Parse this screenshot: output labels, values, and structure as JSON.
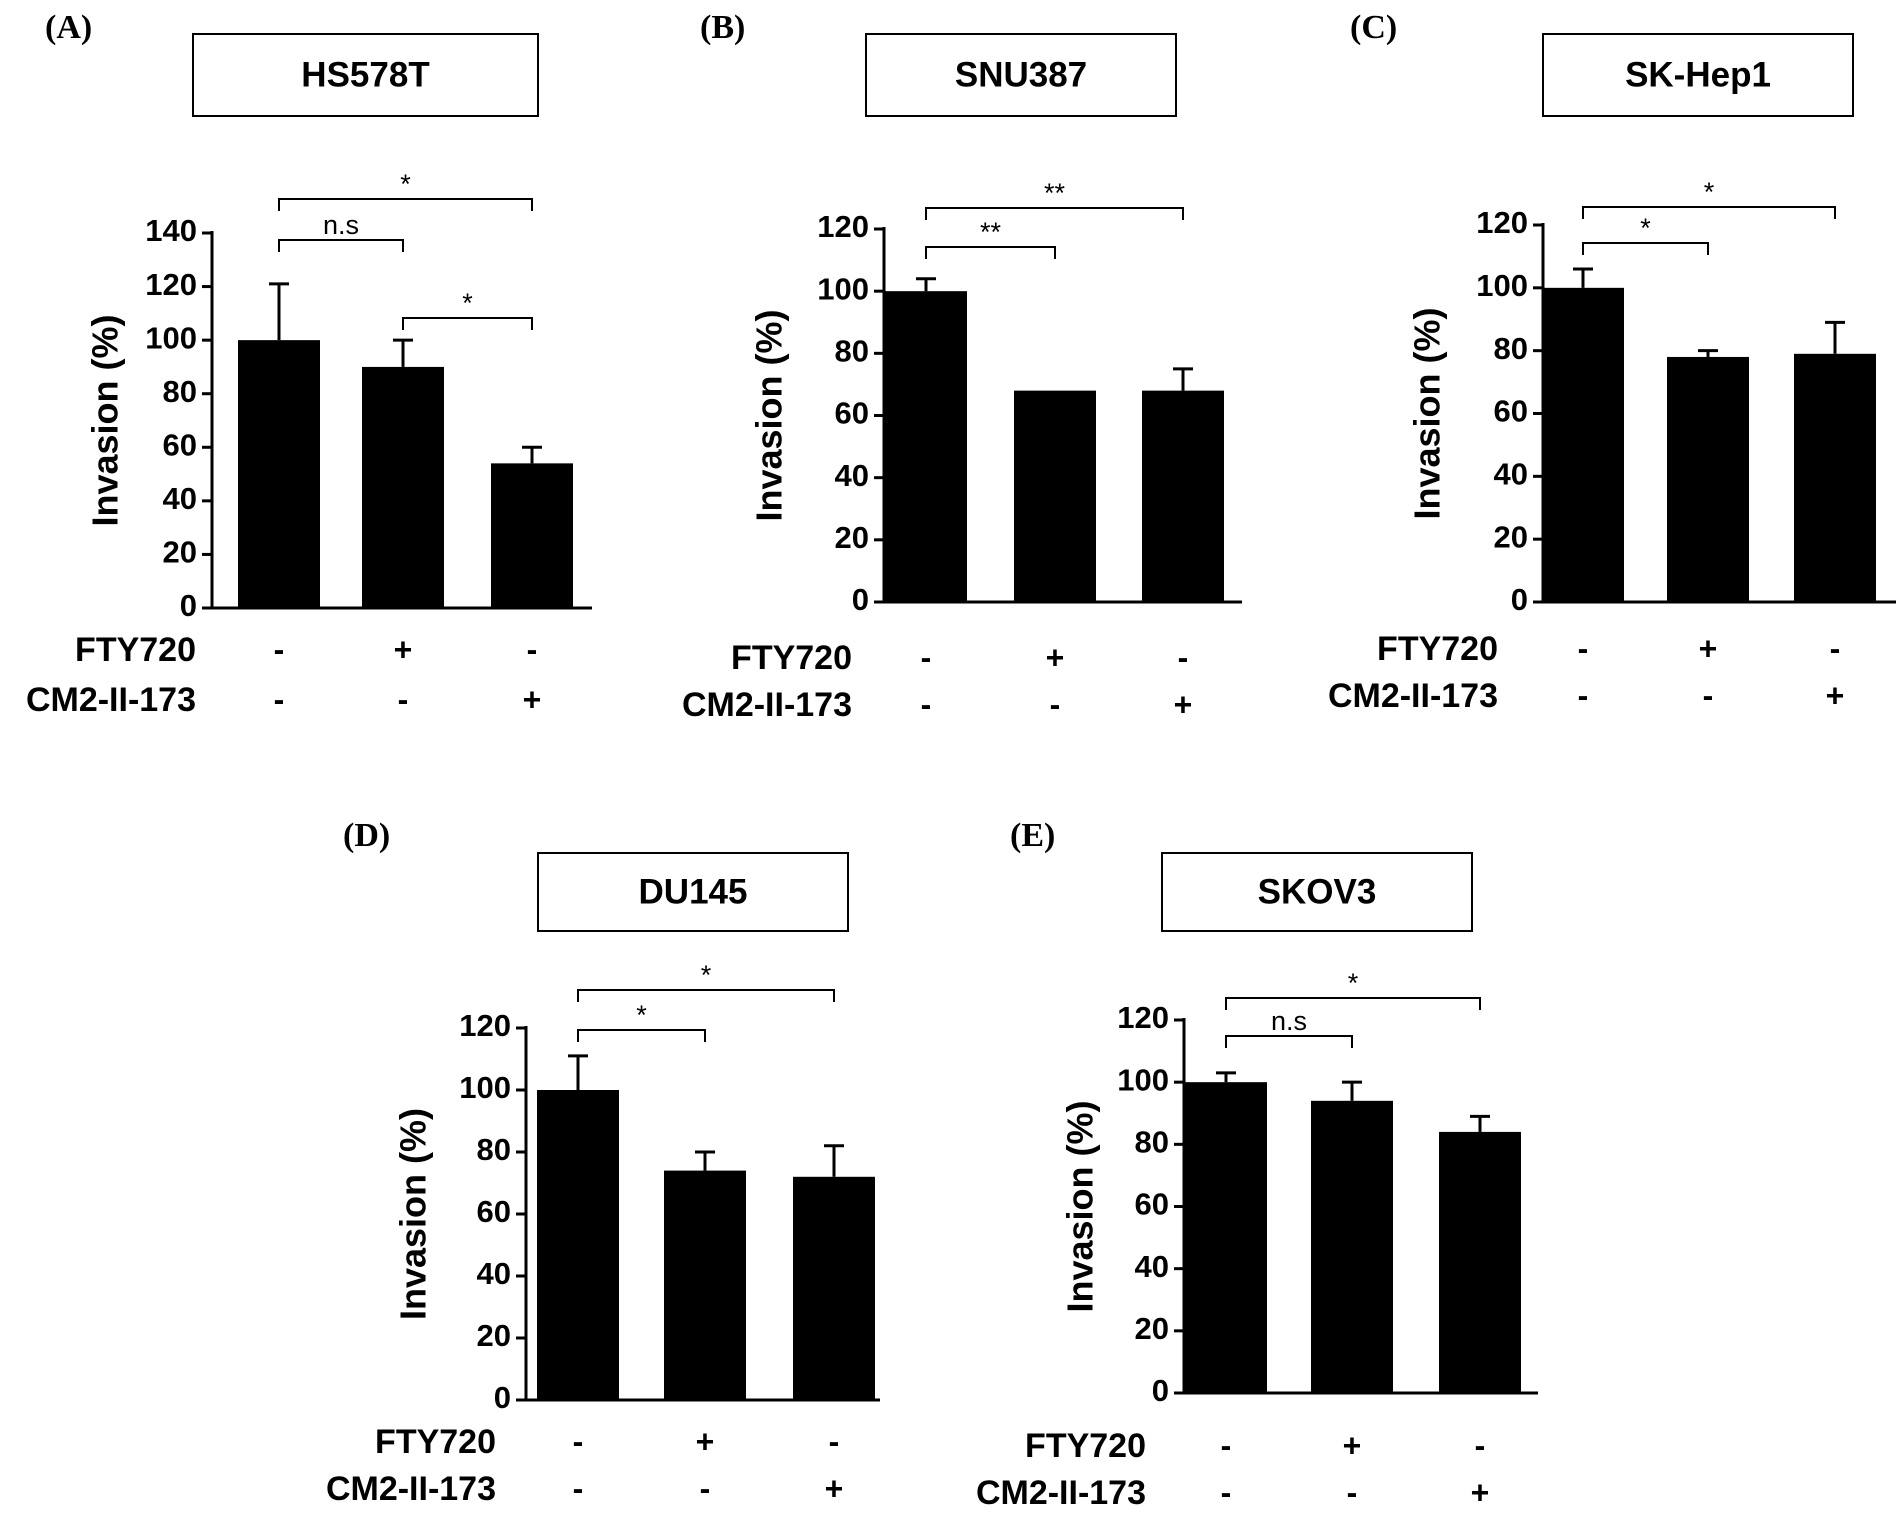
{
  "treatment_labels": [
    "FTY720",
    "CM2-II-173"
  ],
  "chart_data": [
    {
      "type": "bar",
      "panel": "(A)",
      "title": "HS578T",
      "ylabel": "Invasion (%)",
      "ylim": [
        0,
        140
      ],
      "yticks": [
        0,
        20,
        40,
        60,
        80,
        100,
        120,
        140
      ],
      "categories": [
        "FTY720 - / CM2-II-173 -",
        "FTY720 + / CM2-II-173 -",
        "FTY720 - / CM2-II-173 +"
      ],
      "values": [
        100,
        90,
        54
      ],
      "errors": [
        21,
        10,
        6
      ],
      "treatments": [
        [
          "-",
          "+",
          "-"
        ],
        [
          "-",
          "-",
          "+"
        ]
      ],
      "significance": [
        {
          "from": 0,
          "to": 1,
          "label": "n.s",
          "level": 0
        },
        {
          "from": 1,
          "to": 2,
          "label": "*",
          "level": 0
        },
        {
          "from": 0,
          "to": 2,
          "label": "*",
          "level": 1
        }
      ]
    },
    {
      "type": "bar",
      "panel": "(B)",
      "title": "SNU387",
      "ylabel": "Invasion (%)",
      "ylim": [
        0,
        120
      ],
      "yticks": [
        0,
        20,
        40,
        60,
        80,
        100,
        120
      ],
      "categories": [
        "FTY720 - / CM2-II-173 -",
        "FTY720 + / CM2-II-173 -",
        "FTY720 - / CM2-II-173 +"
      ],
      "values": [
        100,
        68,
        68
      ],
      "errors": [
        4,
        0,
        7
      ],
      "treatments": [
        [
          "-",
          "+",
          "-"
        ],
        [
          "-",
          "-",
          "+"
        ]
      ],
      "significance": [
        {
          "from": 0,
          "to": 1,
          "label": "**",
          "level": 0
        },
        {
          "from": 0,
          "to": 2,
          "label": "**",
          "level": 1
        }
      ]
    },
    {
      "type": "bar",
      "panel": "(C)",
      "title": "SK-Hep1",
      "ylabel": "Invasion (%)",
      "ylim": [
        0,
        120
      ],
      "yticks": [
        0,
        20,
        40,
        60,
        80,
        100,
        120
      ],
      "categories": [
        "FTY720 - / CM2-II-173 -",
        "FTY720 + / CM2-II-173 -",
        "FTY720 - / CM2-II-173 +"
      ],
      "values": [
        100,
        78,
        79
      ],
      "errors": [
        6,
        2,
        10
      ],
      "treatments": [
        [
          "-",
          "+",
          "-"
        ],
        [
          "-",
          "-",
          "+"
        ]
      ],
      "significance": [
        {
          "from": 0,
          "to": 1,
          "label": "*",
          "level": 0
        },
        {
          "from": 0,
          "to": 2,
          "label": "*",
          "level": 1
        }
      ]
    },
    {
      "type": "bar",
      "panel": "(D)",
      "title": "DU145",
      "ylabel": "Invasion (%)",
      "ylim": [
        0,
        120
      ],
      "yticks": [
        0,
        20,
        40,
        60,
        80,
        100,
        120
      ],
      "categories": [
        "FTY720 - / CM2-II-173 -",
        "FTY720 + / CM2-II-173 -",
        "FTY720 - / CM2-II-173 +"
      ],
      "values": [
        100,
        74,
        72
      ],
      "errors": [
        11,
        6,
        10
      ],
      "treatments": [
        [
          "-",
          "+",
          "-"
        ],
        [
          "-",
          "-",
          "+"
        ]
      ],
      "significance": [
        {
          "from": 0,
          "to": 1,
          "label": "*",
          "level": 0
        },
        {
          "from": 0,
          "to": 2,
          "label": "*",
          "level": 1
        }
      ]
    },
    {
      "type": "bar",
      "panel": "(E)",
      "title": "SKOV3",
      "ylabel": "Invasion (%)",
      "ylim": [
        0,
        120
      ],
      "yticks": [
        0,
        20,
        40,
        60,
        80,
        100,
        120
      ],
      "categories": [
        "FTY720 - / CM2-II-173 -",
        "FTY720 + / CM2-II-173 -",
        "FTY720 - / CM2-II-173 +"
      ],
      "values": [
        100,
        94,
        84
      ],
      "errors": [
        3,
        6,
        5
      ],
      "treatments": [
        [
          "-",
          "+",
          "-"
        ],
        [
          "-",
          "-",
          "+"
        ]
      ],
      "significance": [
        {
          "from": 0,
          "to": 1,
          "label": "n.s",
          "level": 0
        },
        {
          "from": 0,
          "to": 2,
          "label": "*",
          "level": 1
        }
      ]
    }
  ]
}
